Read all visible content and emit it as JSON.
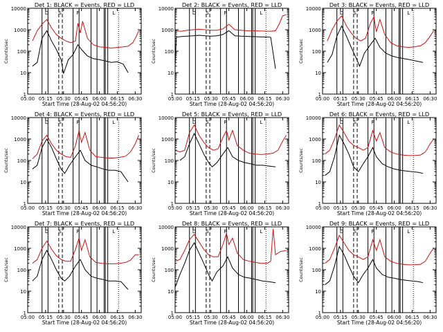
{
  "colors": {
    "events": "#000000",
    "lld": "#d01010",
    "axis": "#000000",
    "background": "#ffffff"
  },
  "shared": {
    "xlabel": "Start Time (28-Aug-02 04:56:20)",
    "ylabel": "Counts/sec",
    "x_ticks": [
      "05:00",
      "05:15",
      "05:30",
      "05:45",
      "06:00",
      "06:15",
      "06:30"
    ],
    "y_ticks": [
      "1",
      "10",
      "100",
      "1000",
      "10000"
    ],
    "marker_labels": [
      "D",
      "S",
      "P",
      "L"
    ]
  },
  "chart_data": [
    {
      "type": "line",
      "title": "Det 1: BLACK = Events, RED = LLD",
      "xlim": [
        "05:00",
        "06:35"
      ],
      "ylim": [
        1,
        10000
      ],
      "y_scale": "log",
      "series": [
        {
          "name": "Events",
          "x": [
            "05:04",
            "05:08",
            "05:12",
            "05:16",
            "05:20",
            "05:24",
            "05:28",
            "05:30",
            "05:34",
            "05:38",
            "05:42",
            "05:45",
            "05:50",
            "05:55",
            "06:00",
            "06:05",
            "06:10",
            "06:15",
            "06:20",
            "06:24"
          ],
          "values": [
            20,
            30,
            400,
            900,
            300,
            120,
            40,
            9,
            40,
            70,
            200,
            120,
            60,
            45,
            40,
            35,
            30,
            32,
            25,
            10
          ]
        },
        {
          "name": "LLD",
          "x": [
            "05:04",
            "05:08",
            "05:12",
            "05:16",
            "05:20",
            "05:24",
            "05:28",
            "05:32",
            "05:36",
            "05:40",
            "05:42",
            "05:44",
            "05:46",
            "05:50",
            "05:55",
            "06:00",
            "06:05",
            "06:10",
            "06:15",
            "06:20",
            "06:24",
            "06:28",
            "06:31",
            "06:33"
          ],
          "values": [
            300,
            900,
            1800,
            3000,
            1200,
            600,
            400,
            300,
            250,
            300,
            2000,
            700,
            2500,
            400,
            200,
            160,
            150,
            140,
            150,
            160,
            170,
            250,
            500,
            900
          ]
        }
      ]
    },
    {
      "type": "line",
      "title": "Det 2: BLACK = Events, RED = LLD",
      "xlim": [
        "05:00",
        "06:35"
      ],
      "ylim": [
        1,
        10000
      ],
      "y_scale": "log",
      "series": [
        {
          "name": "Events",
          "x": [
            "05:00",
            "05:01",
            "05:05",
            "05:10",
            "05:15",
            "05:20",
            "05:25",
            "05:30",
            "05:35",
            "05:40",
            "05:45",
            "05:50",
            "05:55",
            "06:00",
            "06:05",
            "06:10",
            "06:15",
            "06:20",
            "06:24"
          ],
          "values": [
            20,
            450,
            480,
            500,
            520,
            550,
            520,
            500,
            520,
            600,
            900,
            520,
            500,
            490,
            480,
            470,
            460,
            450,
            15
          ]
        },
        {
          "name": "LLD",
          "x": [
            "05:00",
            "05:05",
            "05:10",
            "05:15",
            "05:20",
            "05:25",
            "05:30",
            "05:35",
            "05:40",
            "05:45",
            "05:50",
            "05:55",
            "06:00",
            "06:05",
            "06:10",
            "06:15",
            "06:20",
            "06:24",
            "06:27",
            "06:30",
            "06:33"
          ],
          "values": [
            900,
            850,
            950,
            1000,
            1050,
            1000,
            950,
            950,
            1100,
            1800,
            1000,
            950,
            900,
            900,
            880,
            860,
            850,
            900,
            1800,
            4500,
            5000
          ]
        }
      ]
    },
    {
      "type": "line",
      "title": "Det 3: BLACK = Events, RED = LLD",
      "xlim": [
        "05:00",
        "06:35"
      ],
      "ylim": [
        1,
        10000
      ],
      "y_scale": "log",
      "series": [
        {
          "name": "Events",
          "x": [
            "05:04",
            "05:08",
            "05:12",
            "05:16",
            "05:20",
            "05:24",
            "05:28",
            "05:31",
            "05:35",
            "05:40",
            "05:44",
            "05:48",
            "05:53",
            "05:58",
            "06:03",
            "06:08",
            "06:13",
            "06:18",
            "06:24"
          ],
          "values": [
            30,
            70,
            500,
            1500,
            500,
            150,
            50,
            20,
            80,
            200,
            400,
            150,
            80,
            60,
            50,
            45,
            40,
            35,
            30
          ]
        },
        {
          "name": "LLD",
          "x": [
            "05:04",
            "05:08",
            "05:12",
            "05:16",
            "05:20",
            "05:24",
            "05:28",
            "05:32",
            "05:36",
            "05:40",
            "05:43",
            "05:45",
            "05:48",
            "05:52",
            "05:57",
            "06:02",
            "06:07",
            "06:12",
            "06:17",
            "06:22",
            "06:26",
            "06:30",
            "06:33"
          ],
          "values": [
            300,
            1000,
            2500,
            4500,
            1500,
            700,
            400,
            300,
            400,
            2000,
            4000,
            800,
            3000,
            600,
            250,
            180,
            160,
            150,
            160,
            180,
            250,
            500,
            900
          ]
        }
      ]
    },
    {
      "type": "line",
      "title": "Det 4: BLACK = Events, RED = LLD",
      "xlim": [
        "05:00",
        "06:35"
      ],
      "ylim": [
        1,
        10000
      ],
      "y_scale": "log",
      "series": [
        {
          "name": "Events",
          "x": [
            "05:04",
            "05:08",
            "05:12",
            "05:16",
            "05:20",
            "05:24",
            "05:28",
            "05:31",
            "05:35",
            "05:40",
            "05:44",
            "05:48",
            "05:53",
            "05:58",
            "06:03",
            "06:08",
            "06:13",
            "06:18",
            "06:24"
          ],
          "values": [
            40,
            60,
            400,
            1000,
            400,
            120,
            40,
            25,
            60,
            150,
            300,
            100,
            60,
            50,
            40,
            35,
            35,
            30,
            10
          ]
        },
        {
          "name": "LLD",
          "x": [
            "05:04",
            "05:08",
            "05:12",
            "05:16",
            "05:20",
            "05:24",
            "05:28",
            "05:32",
            "05:36",
            "05:40",
            "05:43",
            "05:45",
            "05:48",
            "05:52",
            "05:57",
            "06:02",
            "06:07",
            "06:12",
            "06:17",
            "06:22",
            "06:26",
            "06:30",
            "06:33"
          ],
          "values": [
            120,
            200,
            800,
            1500,
            600,
            300,
            200,
            150,
            140,
            500,
            2500,
            700,
            2000,
            300,
            150,
            140,
            130,
            130,
            140,
            160,
            250,
            600,
            1500
          ]
        }
      ]
    },
    {
      "type": "line",
      "title": "Det 5: BLACK = Events, RED = LLD",
      "xlim": [
        "05:00",
        "06:35"
      ],
      "ylim": [
        1,
        10000
      ],
      "y_scale": "log",
      "series": [
        {
          "name": "Events",
          "x": [
            "05:04",
            "05:08",
            "05:12",
            "05:16",
            "05:20",
            "05:24",
            "05:28",
            "05:31",
            "05:35",
            "05:40",
            "05:44",
            "05:48",
            "05:53",
            "05:58",
            "06:03",
            "06:08",
            "06:13",
            "06:18",
            "06:24"
          ],
          "values": [
            100,
            150,
            600,
            1800,
            600,
            200,
            80,
            50,
            80,
            200,
            400,
            150,
            100,
            80,
            70,
            60,
            60,
            55,
            50
          ]
        },
        {
          "name": "LLD",
          "x": [
            "05:00",
            "05:04",
            "05:08",
            "05:12",
            "05:16",
            "05:20",
            "05:24",
            "05:28",
            "05:32",
            "05:36",
            "05:40",
            "05:43",
            "05:45",
            "05:48",
            "05:52",
            "05:57",
            "06:02",
            "06:07",
            "06:12",
            "06:17",
            "06:22",
            "06:26",
            "06:30",
            "06:33"
          ],
          "values": [
            300,
            250,
            300,
            2000,
            4500,
            1500,
            700,
            400,
            300,
            350,
            1200,
            2500,
            900,
            2500,
            500,
            300,
            220,
            200,
            190,
            200,
            220,
            300,
            800,
            1500
          ]
        }
      ]
    },
    {
      "type": "line",
      "title": "Det 6: BLACK = Events, RED = LLD",
      "xlim": [
        "05:00",
        "06:35"
      ],
      "ylim": [
        1,
        10000
      ],
      "y_scale": "log",
      "series": [
        {
          "name": "Events",
          "x": [
            "05:02",
            "05:06",
            "05:10",
            "05:14",
            "05:18",
            "05:22",
            "05:26",
            "05:30",
            "05:34",
            "05:38",
            "05:42",
            "05:45",
            "05:50",
            "05:55",
            "06:00",
            "06:05",
            "06:10",
            "06:15",
            "06:20",
            "06:24"
          ],
          "values": [
            20,
            30,
            150,
            1500,
            600,
            200,
            50,
            30,
            70,
            150,
            400,
            150,
            70,
            50,
            40,
            35,
            32,
            30,
            28,
            25
          ]
        },
        {
          "name": "LLD",
          "x": [
            "05:02",
            "05:06",
            "05:10",
            "05:14",
            "05:18",
            "05:22",
            "05:26",
            "05:30",
            "05:34",
            "05:38",
            "05:42",
            "05:45",
            "05:48",
            "05:52",
            "05:57",
            "06:02",
            "06:07",
            "06:12",
            "06:17",
            "06:22",
            "06:26",
            "06:30",
            "06:33"
          ],
          "values": [
            200,
            300,
            1000,
            4500,
            2000,
            800,
            500,
            400,
            300,
            400,
            2500,
            800,
            2000,
            400,
            250,
            200,
            180,
            170,
            170,
            180,
            250,
            600,
            1000
          ]
        }
      ]
    },
    {
      "type": "line",
      "title": "Det 7: BLACK = Events, RED = LLD",
      "xlim": [
        "05:00",
        "06:35"
      ],
      "ylim": [
        1,
        10000
      ],
      "y_scale": "log",
      "series": [
        {
          "name": "Events",
          "x": [
            "05:04",
            "05:08",
            "05:12",
            "05:16",
            "05:20",
            "05:24",
            "05:28",
            "05:31",
            "05:35",
            "05:40",
            "05:44",
            "05:48",
            "05:53",
            "05:58",
            "06:03",
            "06:08",
            "06:13",
            "06:18",
            "06:24"
          ],
          "values": [
            30,
            50,
            300,
            800,
            300,
            100,
            40,
            30,
            50,
            150,
            300,
            100,
            50,
            40,
            35,
            30,
            30,
            28,
            12
          ]
        },
        {
          "name": "LLD",
          "x": [
            "05:04",
            "05:08",
            "05:12",
            "05:16",
            "05:20",
            "05:24",
            "05:28",
            "05:32",
            "05:36",
            "05:40",
            "05:43",
            "05:45",
            "05:48",
            "05:52",
            "05:57",
            "06:02",
            "06:07",
            "06:12",
            "06:17",
            "06:22",
            "06:26",
            "06:30",
            "06:33"
          ],
          "values": [
            200,
            300,
            1000,
            2200,
            900,
            450,
            300,
            250,
            250,
            900,
            3000,
            800,
            2500,
            400,
            220,
            200,
            190,
            190,
            200,
            220,
            280,
            500,
            500
          ]
        }
      ]
    },
    {
      "type": "line",
      "title": "Det 8: BLACK = Events, RED = LLD",
      "xlim": [
        "05:00",
        "06:35"
      ],
      "ylim": [
        1,
        10000
      ],
      "y_scale": "log",
      "series": [
        {
          "name": "Events",
          "x": [
            "05:00",
            "05:04",
            "05:08",
            "05:12",
            "05:16",
            "05:20",
            "05:24",
            "05:28",
            "05:31",
            "05:35",
            "05:40",
            "05:44",
            "05:48",
            "05:53",
            "05:58",
            "06:03",
            "06:08",
            "06:13",
            "06:18",
            "06:24"
          ],
          "values": [
            15,
            60,
            200,
            800,
            1800,
            600,
            200,
            60,
            30,
            80,
            150,
            400,
            120,
            60,
            45,
            40,
            35,
            30,
            28,
            25
          ]
        },
        {
          "name": "LLD",
          "x": [
            "05:00",
            "05:04",
            "05:08",
            "05:12",
            "05:16",
            "05:20",
            "05:24",
            "05:28",
            "05:32",
            "05:36",
            "05:40",
            "05:43",
            "05:45",
            "05:48",
            "05:52",
            "05:57",
            "06:02",
            "06:07",
            "06:12",
            "06:17",
            "06:20",
            "06:22",
            "06:24",
            "06:28",
            "06:33"
          ],
          "values": [
            250,
            300,
            800,
            2500,
            4500,
            2000,
            900,
            500,
            400,
            400,
            1500,
            5000,
            1500,
            3000,
            600,
            300,
            250,
            220,
            200,
            200,
            250,
            8000,
            500,
            700,
            800
          ]
        }
      ]
    },
    {
      "type": "line",
      "title": "Det 9: BLACK = Events, RED = LLD",
      "xlim": [
        "05:00",
        "06:35"
      ],
      "ylim": [
        1,
        10000
      ],
      "y_scale": "log",
      "series": [
        {
          "name": "Events",
          "x": [
            "05:02",
            "05:06",
            "05:10",
            "05:14",
            "05:18",
            "05:22",
            "05:26",
            "05:30",
            "05:34",
            "05:38",
            "05:42",
            "05:45",
            "05:50",
            "05:55",
            "06:00",
            "06:05",
            "06:10",
            "06:15",
            "06:20",
            "06:24"
          ],
          "values": [
            20,
            30,
            150,
            1200,
            500,
            150,
            50,
            25,
            60,
            120,
            300,
            120,
            60,
            45,
            40,
            35,
            32,
            30,
            28,
            25
          ]
        },
        {
          "name": "LLD",
          "x": [
            "05:02",
            "05:06",
            "05:10",
            "05:14",
            "05:18",
            "05:22",
            "05:26",
            "05:30",
            "05:34",
            "05:38",
            "05:42",
            "05:45",
            "05:48",
            "05:52",
            "05:57",
            "06:02",
            "06:07",
            "06:12",
            "06:17",
            "06:22",
            "06:26",
            "06:30",
            "06:33"
          ],
          "values": [
            200,
            300,
            1000,
            4000,
            1800,
            800,
            500,
            400,
            300,
            400,
            2500,
            800,
            2500,
            400,
            250,
            200,
            180,
            170,
            170,
            180,
            250,
            600,
            1000
          ]
        }
      ]
    }
  ]
}
